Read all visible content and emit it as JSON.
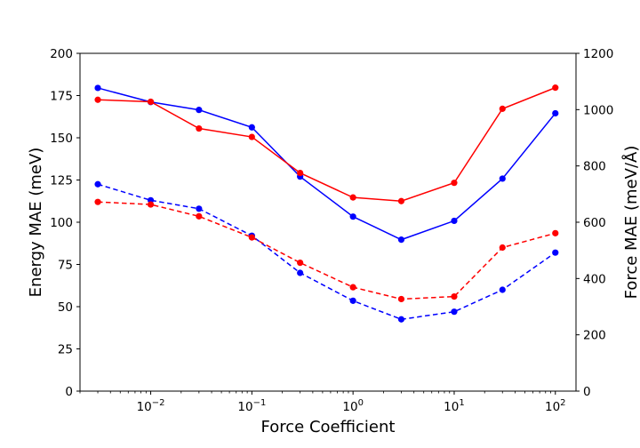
{
  "chart_data": {
    "type": "line",
    "xlabel": "Force Coefficient",
    "ylabel_left": "Energy MAE (meV)",
    "ylabel_right": "Force MAE (meV/Å)",
    "xscale": "log",
    "xlim": [
      0.002,
      160
    ],
    "ylim_left": [
      0,
      200
    ],
    "ylim_right": [
      0,
      1200
    ],
    "x_ticks": [
      {
        "value": 0.01,
        "base": "10",
        "exp": "−2"
      },
      {
        "value": 0.1,
        "base": "10",
        "exp": "−1"
      },
      {
        "value": 1,
        "base": "10",
        "exp": "0"
      },
      {
        "value": 10,
        "base": "10",
        "exp": "1"
      },
      {
        "value": 100,
        "base": "10",
        "exp": "2"
      }
    ],
    "y_ticks_left": [
      "0",
      "25",
      "50",
      "75",
      "100",
      "125",
      "150",
      "175",
      "200"
    ],
    "y_ticks_right": [
      "0",
      "200",
      "400",
      "600",
      "800",
      "1000",
      "1200"
    ],
    "x": [
      0.003,
      0.01,
      0.03,
      0.1,
      0.3,
      1,
      3,
      10,
      30,
      100
    ],
    "series": [
      {
        "name": "blue-solid",
        "axis": "right",
        "color": "#0000ff",
        "dash": "solid",
        "values": [
          1077,
          1027,
          999,
          937,
          762,
          620,
          538,
          605,
          755,
          987
        ]
      },
      {
        "name": "red-solid",
        "axis": "right",
        "color": "#ff0000",
        "dash": "solid",
        "values": [
          1035,
          1028,
          933,
          903,
          775,
          688,
          675,
          740,
          1003,
          1078
        ]
      },
      {
        "name": "blue-dashed",
        "axis": "left",
        "color": "#0000ff",
        "dash": "dashed",
        "values": [
          122.5,
          113,
          108,
          92,
          70,
          53.5,
          42.5,
          47,
          60,
          82
        ]
      },
      {
        "name": "red-dashed",
        "axis": "left",
        "color": "#ff0000",
        "dash": "dashed",
        "values": [
          112,
          110.5,
          103.5,
          91,
          76,
          61.5,
          54.5,
          56,
          85,
          93.5
        ]
      }
    ]
  }
}
